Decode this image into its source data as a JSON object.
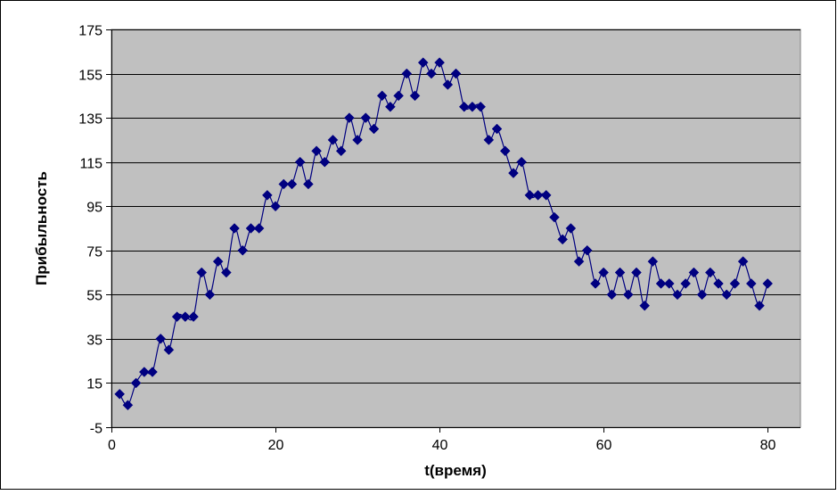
{
  "colors": {
    "plot_background": "#c0c0c0",
    "series": "#000080",
    "gridline": "#000000",
    "frame": "#000000",
    "page_background": "#ffffff"
  },
  "chart_data": {
    "type": "line",
    "title": "",
    "xlabel": "t(время)",
    "ylabel": "Прибыльность",
    "xlim": [
      0,
      84
    ],
    "ylim": [
      -5,
      175
    ],
    "xticks": [
      0,
      20,
      40,
      60,
      80
    ],
    "xtick_labels": [
      "0",
      "20",
      "40",
      "60",
      "80"
    ],
    "yticks": [
      -5,
      15,
      35,
      55,
      75,
      95,
      115,
      135,
      155,
      175
    ],
    "ytick_labels": [
      "-5",
      "15",
      "35",
      "55",
      "75",
      "95",
      "115",
      "135",
      "155",
      "175"
    ],
    "grid": {
      "horizontal": true,
      "vertical": false
    },
    "legend": "none",
    "marker": "diamond",
    "series": [
      {
        "x": [
          1,
          2,
          3,
          4,
          5,
          6,
          7,
          8,
          9,
          10,
          11,
          12,
          13,
          14,
          15,
          16,
          17,
          18,
          19,
          20,
          21,
          22,
          23,
          24,
          25,
          26,
          27,
          28,
          29,
          30,
          31,
          32,
          33,
          34,
          35,
          36,
          37,
          38,
          39,
          40,
          41,
          42,
          43,
          44,
          45,
          46,
          47,
          48,
          49,
          50,
          51,
          52,
          53,
          54,
          55,
          56,
          57,
          58,
          59,
          60,
          61,
          62,
          63,
          64,
          65,
          66,
          67,
          68,
          69,
          70,
          71,
          72,
          73,
          74,
          75,
          76,
          77,
          78,
          79,
          80
        ],
        "values": [
          10,
          5,
          15,
          20,
          20,
          35,
          30,
          45,
          45,
          45,
          65,
          55,
          70,
          65,
          85,
          75,
          85,
          85,
          100,
          95,
          105,
          105,
          115,
          105,
          120,
          115,
          125,
          120,
          135,
          125,
          135,
          130,
          145,
          140,
          145,
          155,
          145,
          160,
          155,
          160,
          150,
          155,
          140,
          140,
          140,
          125,
          130,
          120,
          110,
          115,
          100,
          100,
          100,
          90,
          80,
          85,
          70,
          75,
          60,
          65,
          55,
          65,
          55,
          65,
          50,
          70,
          60,
          60,
          55,
          60,
          65,
          55,
          65,
          60,
          55,
          60,
          70,
          60,
          50,
          60
        ]
      }
    ]
  }
}
